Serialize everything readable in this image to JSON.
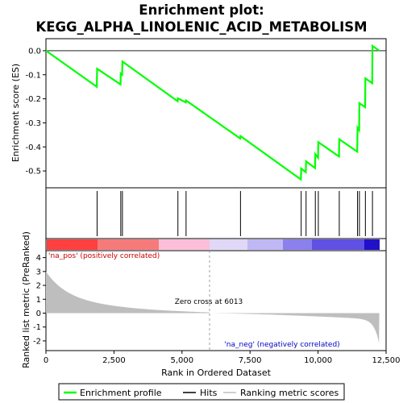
{
  "chart_data": {
    "type": "line",
    "title_line1": "Enrichment plot:",
    "title_line2": "KEGG_ALPHA_LINOLENIC_ACID_METABOLISM",
    "xlabel": "Rank in Ordered Dataset",
    "ylabel_top": "Enrichment score (ES)",
    "ylabel_bottom": "Ranked list metric (PreRanked)",
    "xlim": [
      0,
      12500
    ],
    "x_ticks": [
      0,
      2500,
      5000,
      7500,
      10000,
      12500
    ],
    "x_tick_labels": [
      "0",
      "2,500",
      "5,000",
      "7,500",
      "10,000",
      "12,500"
    ],
    "es_ylim": [
      -0.57,
      0.05
    ],
    "es_ticks": [
      0.0,
      -0.1,
      -0.2,
      -0.3,
      -0.4,
      -0.5
    ],
    "es_tick_labels": [
      "0.0",
      "-0.1",
      "-0.2",
      "-0.3",
      "-0.4",
      "-0.5"
    ],
    "metric_ylim": [
      -2.7,
      4.5
    ],
    "metric_ticks": [
      4,
      3,
      2,
      1,
      0,
      -1,
      -2
    ],
    "metric_tick_labels": [
      "4",
      "3",
      "2",
      "1",
      "0",
      "-1",
      "-2"
    ],
    "hits": [
      1880,
      2750,
      2810,
      4850,
      5150,
      7150,
      9380,
      9560,
      9900,
      10010,
      10780,
      11450,
      11520,
      11740,
      12000
    ],
    "es_points": [
      [
        0,
        0.0
      ],
      [
        1870,
        -0.15
      ],
      [
        1880,
        -0.075
      ],
      [
        2740,
        -0.14
      ],
      [
        2750,
        -0.095
      ],
      [
        2800,
        -0.1
      ],
      [
        2810,
        -0.045
      ],
      [
        4840,
        -0.21
      ],
      [
        4850,
        -0.198
      ],
      [
        5140,
        -0.215
      ],
      [
        5150,
        -0.207
      ],
      [
        7140,
        -0.365
      ],
      [
        7150,
        -0.355
      ],
      [
        9370,
        -0.535
      ],
      [
        9380,
        -0.49
      ],
      [
        9550,
        -0.505
      ],
      [
        9560,
        -0.46
      ],
      [
        9890,
        -0.488
      ],
      [
        9900,
        -0.43
      ],
      [
        10000,
        -0.445
      ],
      [
        10010,
        -0.38
      ],
      [
        10770,
        -0.44
      ],
      [
        10780,
        -0.368
      ],
      [
        11440,
        -0.42
      ],
      [
        11450,
        -0.32
      ],
      [
        11510,
        -0.33
      ],
      [
        11520,
        -0.218
      ],
      [
        11730,
        -0.235
      ],
      [
        11740,
        -0.115
      ],
      [
        11990,
        -0.135
      ],
      [
        12000,
        0.02
      ],
      [
        12250,
        0.0
      ]
    ],
    "zero_cross": 6013,
    "zero_cross_label": "Zero cross at 6013",
    "pos_label": "'na_pos' (positively correlated)",
    "neg_label": "'na_neg' (negatively correlated)",
    "colors": {
      "es_line": "#00ff00",
      "hits": "#000000",
      "metric_fill": "#bebebe",
      "pos_text": "#cc0000",
      "neg_text": "#0000cc",
      "zero_line": "#a0a0a0"
    },
    "legend": [
      "Enrichment profile",
      "Hits",
      "Ranking metric scores"
    ]
  }
}
